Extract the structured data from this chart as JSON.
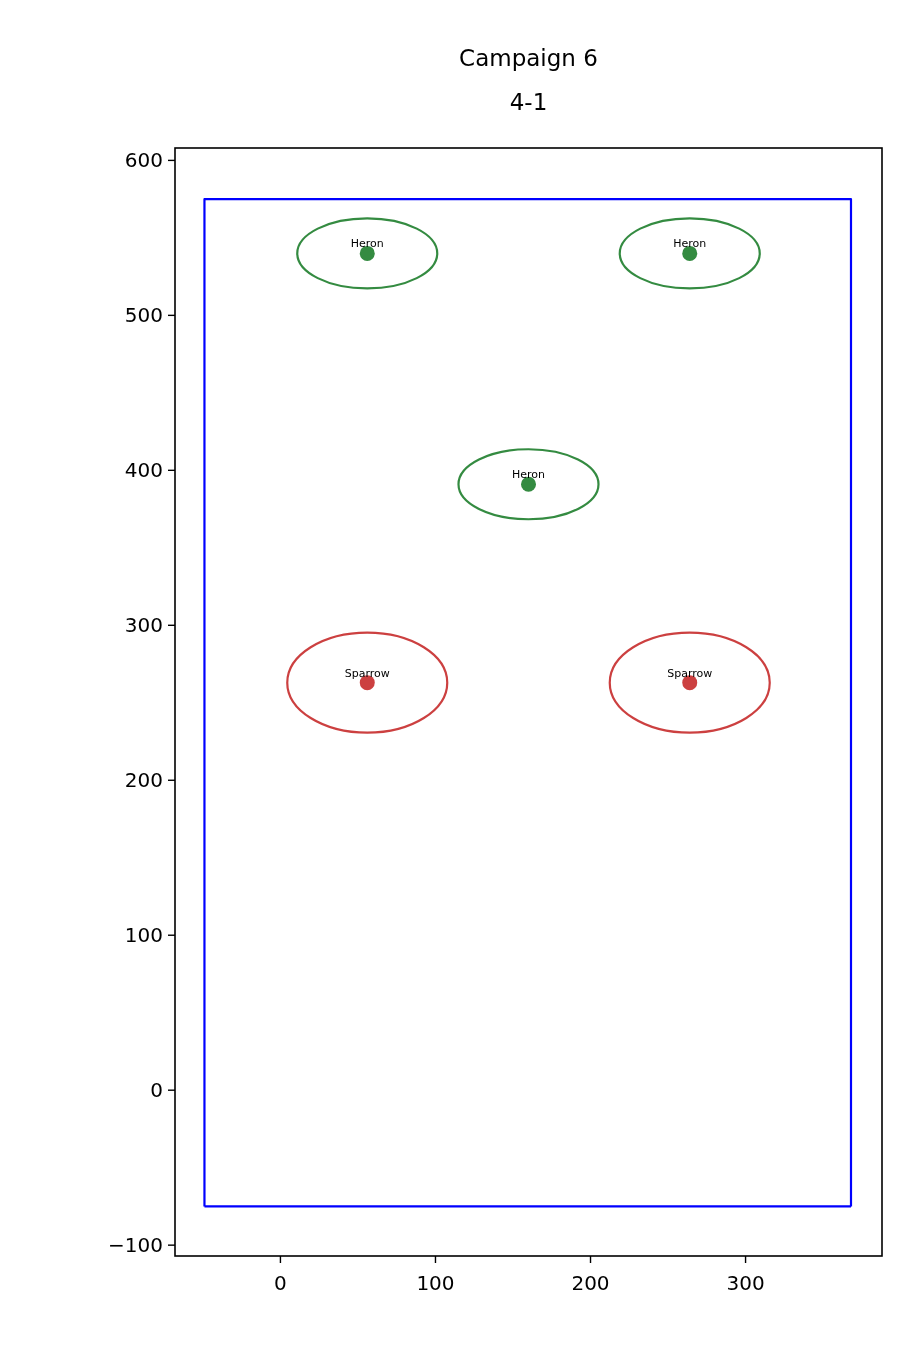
{
  "chart_data": {
    "type": "scatter",
    "title": "Campaign 6\n4-1",
    "xlim": [
      -68,
      388
    ],
    "ylim": [
      -107,
      608
    ],
    "xticks": [
      0,
      100,
      200,
      300
    ],
    "yticks": [
      -100,
      0,
      100,
      200,
      300,
      400,
      500,
      600
    ],
    "grid": false,
    "legend": false,
    "marker": "circle",
    "series": [
      {
        "name": "Heron",
        "color": "#348b41",
        "x": [
          56,
          264,
          160
        ],
        "values": [
          540,
          540,
          391
        ]
      },
      {
        "name": "Sparrow",
        "color": "#cc4040",
        "x": [
          56,
          264
        ],
        "values": [
          263,
          263
        ]
      },
      {
        "type": "line",
        "marker": "none",
        "color": "#0000ff",
        "x": [
          -49,
          -49,
          368,
          368
        ],
        "values": [
          -75,
          575,
          575,
          -75
        ]
      },
      {
        "type": "line",
        "marker": "none",
        "color": "#0000ff",
        "x": [
          -49,
          368
        ],
        "values": [
          -75,
          -75
        ]
      }
    ]
  }
}
